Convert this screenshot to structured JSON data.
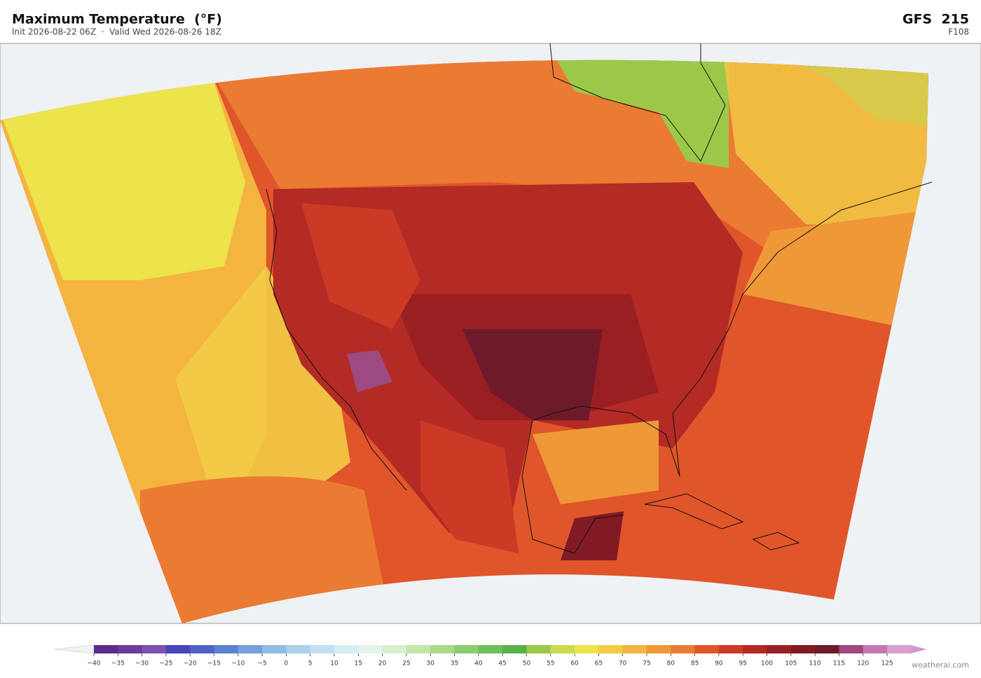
{
  "header": {
    "title": "Maximum Temperature  (°F)",
    "subtitle": "Init 2026-08-22 06Z  ·  Valid Wed 2026-08-26 18Z",
    "model": "GFS  215",
    "forecast_hour": "F108"
  },
  "colorbar": {
    "ticks": [
      {
        "value": -40,
        "label": "−40"
      },
      {
        "value": -35,
        "label": "−35"
      },
      {
        "value": -30,
        "label": "−30"
      },
      {
        "value": -25,
        "label": "−25"
      },
      {
        "value": -20,
        "label": "−20"
      },
      {
        "value": -15,
        "label": "−15"
      },
      {
        "value": -10,
        "label": "−10"
      },
      {
        "value": -5,
        "label": "−5"
      },
      0,
      5,
      10,
      15,
      20,
      25,
      30,
      35,
      40,
      45,
      50,
      55,
      60,
      65,
      70,
      75,
      80,
      85,
      90,
      95,
      100,
      105,
      110,
      115,
      120,
      125
    ],
    "colors": [
      "#5b2d8e",
      "#6a3d9a",
      "#7b52ae",
      "#4646b8",
      "#4e62c8",
      "#5d80d0",
      "#75a0dc",
      "#8fbde3",
      "#a9d1ea",
      "#c2e0ef",
      "#d6edf3",
      "#e4f4ec",
      "#d7efcf",
      "#c3e6a8",
      "#a9da8a",
      "#8bcd6e",
      "#6ebf5c",
      "#55b24c",
      "#9cc84a",
      "#cadc4a",
      "#ece44a",
      "#f3cc46",
      "#f4b440",
      "#ef9838",
      "#eb7b32",
      "#e0552a",
      "#cc3a26",
      "#b42a24",
      "#9a1f22",
      "#821a24",
      "#6e1a2a",
      "#9c4a80",
      "#c479b4",
      "#d8a0cc"
    ],
    "under_color": "#f2f2f2",
    "over_color": "#d09ad0"
  },
  "footer": {
    "credit": "weatherai.com"
  }
}
